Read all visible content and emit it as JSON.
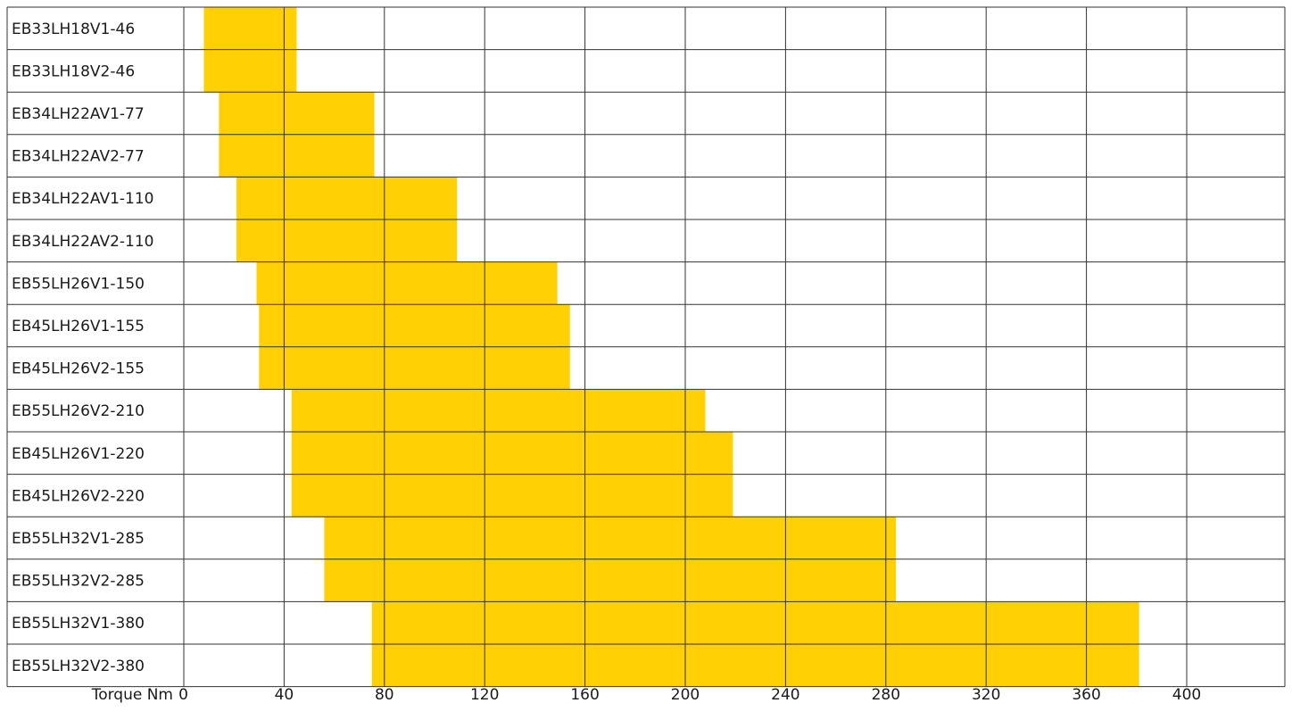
{
  "chart_data": {
    "type": "bar",
    "orientation": "horizontal",
    "xlabel": "Torque Nm",
    "xlim": [
      0,
      400
    ],
    "xticks": [
      0,
      40,
      80,
      120,
      160,
      200,
      240,
      280,
      320,
      360,
      400
    ],
    "grid": true,
    "bar_color": "#FFD105",
    "grid_color": "#333333",
    "categories": [
      "EB33LH18V1-46",
      "EB33LH18V2-46",
      "EB34LH22AV1-77",
      "EB34LH22AV2-77",
      "EB34LH22AV1-110",
      "EB34LH22AV2-110",
      "EB55LH26V1-150",
      "EB45LH26V1-155",
      "EB45LH26V2-155",
      "EB55LH26V2-210",
      "EB45LH26V1-220",
      "EB45LH26V2-220",
      "EB55LH32V1-285",
      "EB55LH32V2-285",
      "EB55LH32V1-380",
      "EB55LH32V2-380"
    ],
    "ranges": [
      [
        8,
        45
      ],
      [
        8,
        45
      ],
      [
        14,
        76
      ],
      [
        14,
        76
      ],
      [
        21,
        109
      ],
      [
        21,
        109
      ],
      [
        29,
        149
      ],
      [
        30,
        154
      ],
      [
        30,
        154
      ],
      [
        43,
        208
      ],
      [
        43,
        219
      ],
      [
        43,
        219
      ],
      [
        56,
        284
      ],
      [
        56,
        284
      ],
      [
        75,
        381
      ],
      [
        75,
        381
      ]
    ]
  }
}
